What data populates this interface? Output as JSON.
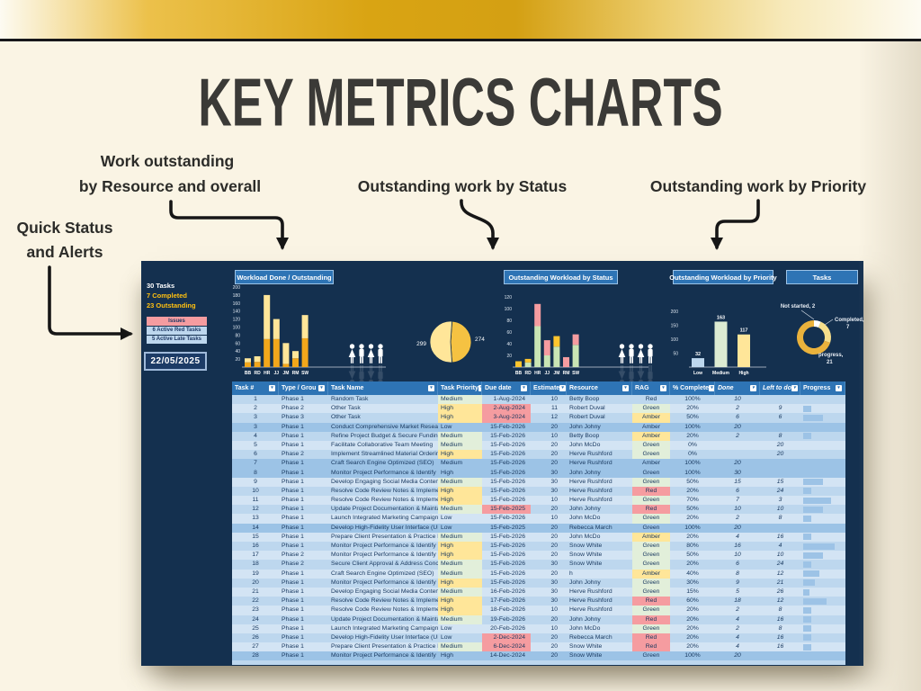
{
  "page_title": "KEY METRICS CHARTS",
  "annotations": {
    "workload": {
      "line1": "Work outstanding",
      "line2": "by Resource and overall"
    },
    "status": "Outstanding work by Status",
    "priority": "Outstanding work by Priority",
    "quick": {
      "line1": "Quick Status",
      "line2": "and Alerts"
    }
  },
  "colors": {
    "band_gold": "#d9a413",
    "page_cream": "#faf4e4",
    "dash_navy": "#14304f",
    "header_blue": "#2e74b5",
    "row_light": "#bdd7ee",
    "row_lighter": "#d3e4f4",
    "row_highlight": "#9cc3e6",
    "cell_green": "#e2efda",
    "cell_amber": "#ffe699",
    "cell_red": "#f59ca0",
    "stat_gold": "#ffc010",
    "bar_done": "#f2a71b",
    "bar_outstanding": "#ffe699"
  },
  "dashboard": {
    "stats": {
      "total": "30 Tasks",
      "completed": "7 Completed",
      "outstanding": "23 Outstanding"
    },
    "issues": {
      "header": "Issues",
      "rows": [
        "6 Active Red Tasks",
        "5 Active Late Tasks"
      ]
    },
    "date": "22/05/2025",
    "chart_titles": {
      "workload": "Workload Done / Outstanding",
      "status": "Outstanding Workload by Status",
      "priority": "Outstanding Workload by Priority",
      "tasks": "Tasks"
    }
  },
  "chart_data": [
    {
      "type": "bar",
      "stacked": true,
      "title": "Workload Done / Outstanding",
      "categories": [
        "BB",
        "RD",
        "HR",
        "JJ",
        "JM",
        "RM",
        "SW"
      ],
      "series": [
        {
          "name": "Done",
          "color": "#f2a71b",
          "values": [
            12,
            13,
            70,
            70,
            8,
            22,
            72
          ]
        },
        {
          "name": "Outstanding",
          "color": "#ffe699",
          "values": [
            10,
            14,
            110,
            50,
            52,
            18,
            58
          ]
        }
      ],
      "ylim": [
        0,
        200
      ],
      "yticks": [
        20,
        40,
        60,
        80,
        100,
        120,
        140,
        160,
        180,
        200
      ],
      "grid": false,
      "legend": "none"
    },
    {
      "type": "pie",
      "title": "Workload Done / Outstanding pie",
      "slices": [
        {
          "label": "274",
          "value": 274,
          "color": "#f5c242"
        },
        {
          "label": "299",
          "value": 299,
          "color": "#ffe699"
        }
      ],
      "start_angle_deg": 4
    },
    {
      "type": "bar",
      "stacked": true,
      "title": "Outstanding Workload by Status",
      "categories": [
        "BB",
        "RD",
        "HR",
        "JJ",
        "JM",
        "RM",
        "SW"
      ],
      "series": [
        {
          "name": "Green",
          "color": "#c9e5b4",
          "values": [
            0,
            8,
            70,
            20,
            35,
            0,
            38
          ]
        },
        {
          "name": "Amber",
          "color": "#fec52e",
          "values": [
            10,
            6,
            0,
            0,
            18,
            0,
            0
          ]
        },
        {
          "name": "Red",
          "color": "#f59ca0",
          "values": [
            0,
            0,
            38,
            26,
            0,
            17,
            18
          ]
        }
      ],
      "ylim": [
        0,
        120
      ],
      "yticks": [
        20,
        40,
        60,
        80,
        100,
        120
      ],
      "grid": false,
      "legend": "none"
    },
    {
      "type": "bar",
      "stacked": false,
      "title": "Outstanding Workload by Priority",
      "categories": [
        "Low",
        "Medium",
        "High"
      ],
      "values": [
        32,
        163,
        117
      ],
      "colors": [
        "#bdd7ee",
        "#dcebd2",
        "#ffe699"
      ],
      "show_values": true,
      "ylim": [
        0,
        200
      ],
      "yticks": [
        50,
        100,
        150,
        200
      ],
      "grid": false,
      "legend": "none"
    },
    {
      "type": "pie",
      "donut": true,
      "title": "Tasks",
      "slices": [
        {
          "label": "Not started",
          "value": 2,
          "color": "#ffffff",
          "display": [
            "Not started, 2"
          ]
        },
        {
          "label": "Completed",
          "value": 7,
          "color": "#f7df8b",
          "display": [
            "Completed,",
            "7"
          ]
        },
        {
          "label": "In progress",
          "value": 21,
          "color": "#eab23c",
          "display": [
            "progress,",
            "21"
          ]
        }
      ],
      "start_angle_deg": 0
    }
  ],
  "table": {
    "headers": [
      "Task #",
      "Type / Grou",
      "Task Name",
      "Task Priority",
      "Due date",
      "Estimate",
      "Resource",
      "RAG",
      "% Complete",
      "Done",
      "Left to do",
      "Progress"
    ],
    "rows": [
      {
        "n": "1",
        "g": "Phase 1",
        "t": "Random Task",
        "p": "Medium",
        "pb": "green",
        "d": "1-Aug-2024",
        "db": "",
        "e": "10",
        "r": "Betty Boop",
        "rag": "Red",
        "rb": "",
        "pc": "100%",
        "done": "10",
        "left": "",
        "bar": 0,
        "hl": false
      },
      {
        "n": "2",
        "g": "Phase 2",
        "t": "Other Task",
        "p": "High",
        "pb": "amber",
        "d": "2-Aug-2024",
        "db": "red",
        "e": "11",
        "r": "Robert Duval",
        "rag": "Green",
        "rb": "green",
        "pc": "20%",
        "done": "2",
        "left": "9",
        "bar": 20,
        "hl": false
      },
      {
        "n": "3",
        "g": "Phase 3",
        "t": "Other Task",
        "p": "High",
        "pb": "amber",
        "d": "3-Aug-2024",
        "db": "red",
        "e": "12",
        "r": "Robert Duval",
        "rag": "Amber",
        "rb": "amber",
        "pc": "50%",
        "done": "6",
        "left": "6",
        "bar": 50,
        "hl": false
      },
      {
        "n": "3",
        "g": "Phase 1",
        "t": "Conduct Comprehensive Market Research",
        "p": "Low",
        "pb": "",
        "d": "15-Feb-2026",
        "db": "",
        "e": "20",
        "r": "John Johny",
        "rag": "Amber",
        "rb": "",
        "pc": "100%",
        "done": "20",
        "left": "",
        "bar": 0,
        "hl": true
      },
      {
        "n": "4",
        "g": "Phase 1",
        "t": "Refine Project Budget & Secure Funding",
        "p": "Medium",
        "pb": "green",
        "d": "15-Feb-2026",
        "db": "",
        "e": "10",
        "r": "Betty Boop",
        "rag": "Amber",
        "rb": "amber",
        "pc": "20%",
        "done": "2",
        "left": "8",
        "bar": 20,
        "hl": false
      },
      {
        "n": "5",
        "g": "Phase 1",
        "t": "Facilitate Collaborative Team Meeting",
        "p": "Medium",
        "pb": "green",
        "d": "15-Feb-2026",
        "db": "",
        "e": "20",
        "r": "John McDo",
        "rag": "Green",
        "rb": "green",
        "pc": "0%",
        "done": "",
        "left": "20",
        "bar": 0,
        "hl": false
      },
      {
        "n": "6",
        "g": "Phase 2",
        "t": "Implement Streamlined Material Ordering",
        "p": "High",
        "pb": "amber",
        "d": "15-Feb-2026",
        "db": "",
        "e": "20",
        "r": "Herve Rushford",
        "rag": "Green",
        "rb": "green",
        "pc": "0%",
        "done": "",
        "left": "20",
        "bar": 0,
        "hl": false
      },
      {
        "n": "7",
        "g": "Phase 1",
        "t": "Craft Search Engine Optimized (SEO)",
        "p": "Medium",
        "pb": "",
        "d": "15-Feb-2026",
        "db": "",
        "e": "20",
        "r": "Herve Rushford",
        "rag": "Amber",
        "rb": "",
        "pc": "100%",
        "done": "20",
        "left": "",
        "bar": 0,
        "hl": true
      },
      {
        "n": "8",
        "g": "Phase 1",
        "t": "Monitor Project Performance & Identify Risl",
        "p": "High",
        "pb": "",
        "d": "15-Feb-2026",
        "db": "",
        "e": "30",
        "r": "John Johny",
        "rag": "Green",
        "rb": "",
        "pc": "100%",
        "done": "30",
        "left": "",
        "bar": 0,
        "hl": true
      },
      {
        "n": "9",
        "g": "Phase 1",
        "t": "Develop Engaging Social Media Content",
        "p": "Medium",
        "pb": "green",
        "d": "15-Feb-2026",
        "db": "",
        "e": "30",
        "r": "Herve Rushford",
        "rag": "Green",
        "rb": "green",
        "pc": "50%",
        "done": "15",
        "left": "15",
        "bar": 50,
        "hl": false
      },
      {
        "n": "10",
        "g": "Phase 1",
        "t": "Resolve Code Review Notes & Implement Fi",
        "p": "High",
        "pb": "amber",
        "d": "15-Feb-2026",
        "db": "",
        "e": "30",
        "r": "Herve Rushford",
        "rag": "Red",
        "rb": "red",
        "pc": "20%",
        "done": "6",
        "left": "24",
        "bar": 20,
        "hl": false
      },
      {
        "n": "11",
        "g": "Phase 1",
        "t": "Resolve Code Review Notes & Implement Fi",
        "p": "High",
        "pb": "amber",
        "d": "15-Feb-2026",
        "db": "",
        "e": "10",
        "r": "Herve Rushford",
        "rag": "Green",
        "rb": "green",
        "pc": "70%",
        "done": "7",
        "left": "3",
        "bar": 70,
        "hl": false
      },
      {
        "n": "12",
        "g": "Phase 1",
        "t": "Update Project Documentation & Maintain",
        "p": "Medium",
        "pb": "green",
        "d": "15-Feb-2025",
        "db": "red",
        "e": "20",
        "r": "John Johny",
        "rag": "Red",
        "rb": "red",
        "pc": "50%",
        "done": "10",
        "left": "10",
        "bar": 50,
        "hl": false
      },
      {
        "n": "13",
        "g": "Phase 1",
        "t": "Launch Integrated Marketing Campaign",
        "p": "Low",
        "pb": "",
        "d": "15-Feb-2026",
        "db": "",
        "e": "10",
        "r": "John McDo",
        "rag": "Green",
        "rb": "green",
        "pc": "20%",
        "done": "2",
        "left": "8",
        "bar": 20,
        "hl": false
      },
      {
        "n": "14",
        "g": "Phase 1",
        "t": "Develop High-Fidelity User Interface (UI)",
        "p": "Low",
        "pb": "",
        "d": "15-Feb-2025",
        "db": "",
        "e": "20",
        "r": "Rebecca March",
        "rag": "Green",
        "rb": "",
        "pc": "100%",
        "done": "20",
        "left": "",
        "bar": 0,
        "hl": true
      },
      {
        "n": "15",
        "g": "Phase 1",
        "t": "Prepare Client Presentation & Practice Deli",
        "p": "Medium",
        "pb": "green",
        "d": "15-Feb-2026",
        "db": "",
        "e": "20",
        "r": "John McDo",
        "rag": "Amber",
        "rb": "amber",
        "pc": "20%",
        "done": "4",
        "left": "16",
        "bar": 20,
        "hl": false
      },
      {
        "n": "16",
        "g": "Phase 1",
        "t": "Monitor Project Performance & Identify Risl",
        "p": "High",
        "pb": "amber",
        "d": "15-Feb-2026",
        "db": "",
        "e": "20",
        "r": "Snow White",
        "rag": "Green",
        "rb": "green",
        "pc": "80%",
        "done": "16",
        "left": "4",
        "bar": 80,
        "hl": false
      },
      {
        "n": "17",
        "g": "Phase 2",
        "t": "Monitor Project Performance & Identify Risl",
        "p": "High",
        "pb": "amber",
        "d": "15-Feb-2026",
        "db": "",
        "e": "20",
        "r": "Snow White",
        "rag": "Green",
        "rb": "green",
        "pc": "50%",
        "done": "10",
        "left": "10",
        "bar": 50,
        "hl": false
      },
      {
        "n": "18",
        "g": "Phase 2",
        "t": "Secure Client Approval & Address Concerns",
        "p": "Medium",
        "pb": "green",
        "d": "15-Feb-2026",
        "db": "",
        "e": "30",
        "r": "Snow White",
        "rag": "Green",
        "rb": "green",
        "pc": "20%",
        "done": "6",
        "left": "24",
        "bar": 20,
        "hl": false
      },
      {
        "n": "19",
        "g": "Phase 1",
        "t": "Craft Search Engine Optimized (SEO)",
        "p": "Medium",
        "pb": "green",
        "d": "15-Feb-2026",
        "db": "",
        "e": "20",
        "r": "h",
        "rag": "Amber",
        "rb": "amber",
        "pc": "40%",
        "done": "8",
        "left": "12",
        "bar": 40,
        "hl": false
      },
      {
        "n": "20",
        "g": "Phase 1",
        "t": "Monitor Project Performance & Identify Risl",
        "p": "High",
        "pb": "amber",
        "d": "15-Feb-2026",
        "db": "",
        "e": "30",
        "r": "John Johny",
        "rag": "Green",
        "rb": "green",
        "pc": "30%",
        "done": "9",
        "left": "21",
        "bar": 30,
        "hl": false
      },
      {
        "n": "21",
        "g": "Phase 1",
        "t": "Develop Engaging Social Media Content",
        "p": "Medium",
        "pb": "green",
        "d": "16-Feb-2026",
        "db": "",
        "e": "30",
        "r": "Herve Rushford",
        "rag": "Green",
        "rb": "green",
        "pc": "15%",
        "done": "5",
        "left": "26",
        "bar": 15,
        "hl": false
      },
      {
        "n": "22",
        "g": "Phase 1",
        "t": "Resolve Code Review Notes & Implement Fi",
        "p": "High",
        "pb": "amber",
        "d": "17-Feb-2026",
        "db": "",
        "e": "30",
        "r": "Herve Rushford",
        "rag": "Red",
        "rb": "red",
        "pc": "60%",
        "done": "18",
        "left": "12",
        "bar": 60,
        "hl": false
      },
      {
        "n": "23",
        "g": "Phase 1",
        "t": "Resolve Code Review Notes & Implement Fi",
        "p": "High",
        "pb": "amber",
        "d": "18-Feb-2026",
        "db": "",
        "e": "10",
        "r": "Herve Rushford",
        "rag": "Green",
        "rb": "green",
        "pc": "20%",
        "done": "2",
        "left": "8",
        "bar": 20,
        "hl": false
      },
      {
        "n": "24",
        "g": "Phase 1",
        "t": "Update Project Documentation & Maintain",
        "p": "Medium",
        "pb": "green",
        "d": "19-Feb-2026",
        "db": "",
        "e": "20",
        "r": "John Johny",
        "rag": "Red",
        "rb": "red",
        "pc": "20%",
        "done": "4",
        "left": "16",
        "bar": 20,
        "hl": false
      },
      {
        "n": "25",
        "g": "Phase 1",
        "t": "Launch Integrated Marketing Campaign",
        "p": "Low",
        "pb": "",
        "d": "20-Feb-2026",
        "db": "",
        "e": "10",
        "r": "John McDo",
        "rag": "Green",
        "rb": "green",
        "pc": "20%",
        "done": "2",
        "left": "8",
        "bar": 20,
        "hl": false
      },
      {
        "n": "26",
        "g": "Phase 1",
        "t": "Develop High-Fidelity User Interface (UI)",
        "p": "Low",
        "pb": "",
        "d": "2-Dec-2024",
        "db": "red",
        "e": "20",
        "r": "Rebecca March",
        "rag": "Red",
        "rb": "red",
        "pc": "20%",
        "done": "4",
        "left": "16",
        "bar": 20,
        "hl": false
      },
      {
        "n": "27",
        "g": "Phase 1",
        "t": "Prepare Client Presentation & Practice Deli",
        "p": "Medium",
        "pb": "green",
        "d": "6-Dec-2024",
        "db": "red",
        "e": "20",
        "r": "Snow White",
        "rag": "Red",
        "rb": "red",
        "pc": "20%",
        "done": "4",
        "left": "16",
        "bar": 20,
        "hl": false
      },
      {
        "n": "28",
        "g": "Phase 1",
        "t": "Monitor Project Performance & Identify Risl",
        "p": "High",
        "pb": "",
        "d": "14-Dec-2024",
        "db": "",
        "e": "20",
        "r": "Snow White",
        "rag": "Green",
        "rb": "",
        "pc": "100%",
        "done": "20",
        "left": "",
        "bar": 0,
        "hl": true
      }
    ]
  }
}
